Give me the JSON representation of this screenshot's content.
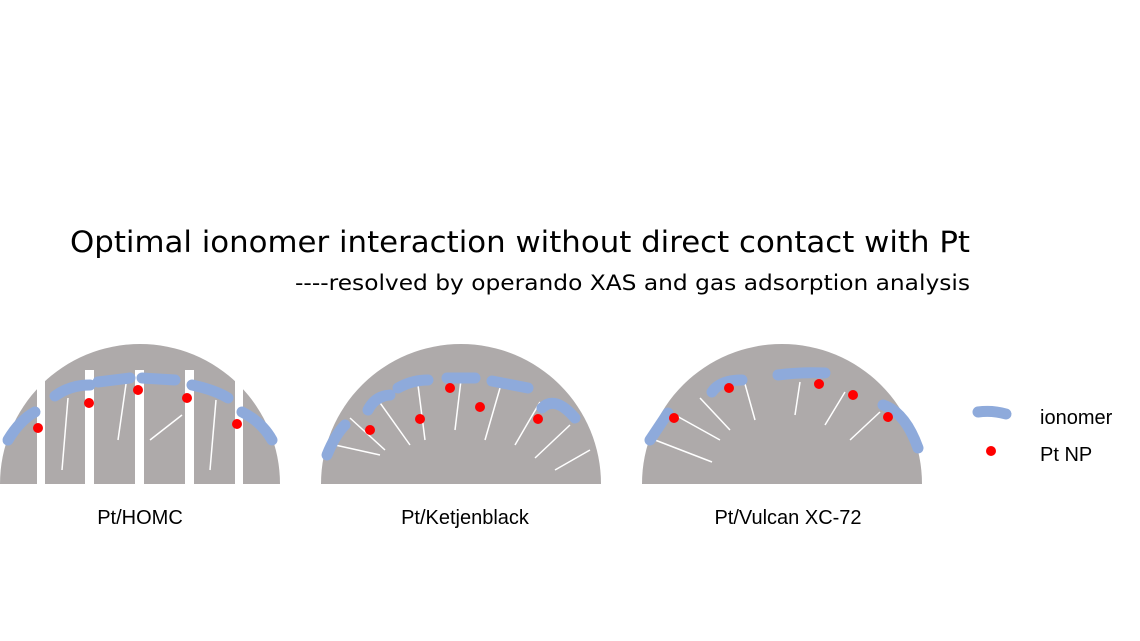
{
  "header": {
    "title": "Optimal ionomer interaction without direct contact with Pt",
    "subtitle": "----resolved by operando XAS and gas adsorption analysis"
  },
  "panels": [
    {
      "label": "Pt/HOMC"
    },
    {
      "label": "Pt/Ketjenblack"
    },
    {
      "label": "Pt/Vulcan  XC-72"
    }
  ],
  "legend": [
    {
      "label": "ionomer"
    },
    {
      "label": "Pt NP"
    }
  ]
}
